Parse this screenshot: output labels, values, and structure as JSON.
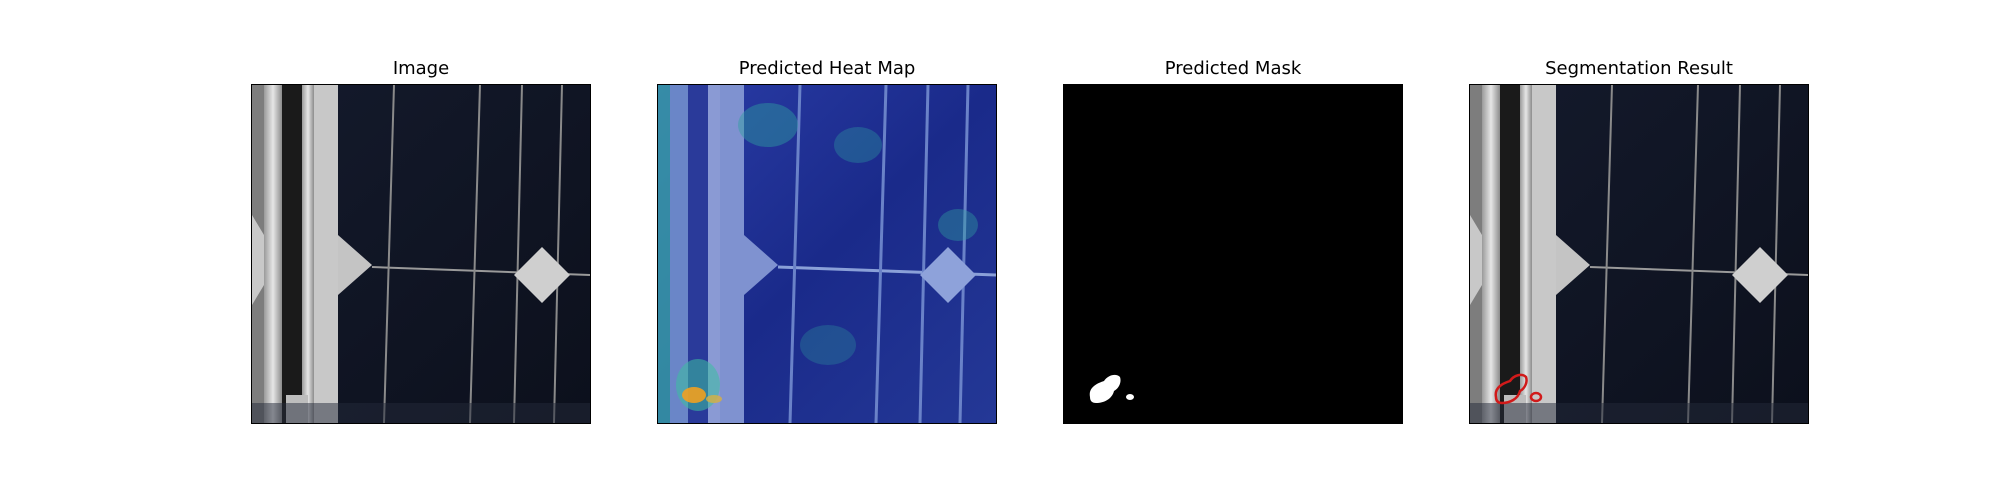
{
  "panels": [
    {
      "title": "Image"
    },
    {
      "title": "Predicted Heat Map"
    },
    {
      "title": "Predicted Mask"
    },
    {
      "title": "Segmentation Result"
    }
  ],
  "colors": {
    "background": "#ffffff",
    "mask_background": "#000000",
    "mask_foreground": "#ffffff",
    "contour": "#d11a1a",
    "panel_cell": "#13182a",
    "heatmap_low": "#1a2a8a",
    "heatmap_high": "#f0a020"
  }
}
